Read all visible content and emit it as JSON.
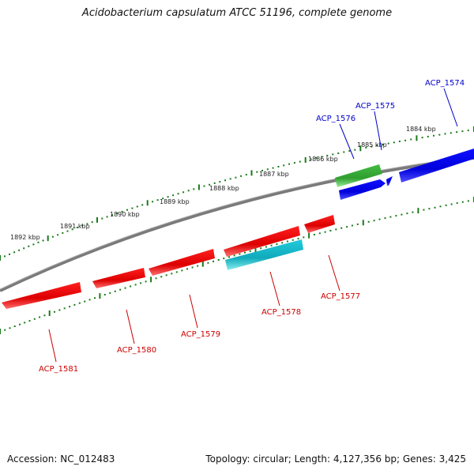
{
  "title": "Acidobacterium capsulatum ATCC 51196, complete genome",
  "accession": "Accession: NC_012483",
  "summary": "Topology: circular; Length: 4,127,356 bp; Genes: 3,425",
  "scale_labels": [
    "1884 kbp",
    "1885 kbp",
    "1886 kbp",
    "1887 kbp",
    "1888 kbp",
    "1889 kbp",
    "1890 kbp",
    "1891 kbp",
    "1892 kbp"
  ],
  "colors": {
    "forward_label": "#0000cc",
    "reverse_label": "#cc0000",
    "gene_red": "#e00000",
    "gene_blue": "#0000e0",
    "gene_green": "#33aa33",
    "gene_cyan": "#11bbcc",
    "backbone": "#808080",
    "tick": "#1a7a1a"
  },
  "genes": [
    {
      "id": "ACP_1574",
      "strand": "forward",
      "color": "blue"
    },
    {
      "id": "ACP_1575",
      "strand": "forward",
      "color": "blue"
    },
    {
      "id": "ACP_1576",
      "strand": "forward",
      "color": "green"
    },
    {
      "id": "ACP_1577",
      "strand": "reverse",
      "color": "red"
    },
    {
      "id": "ACP_1578",
      "strand": "reverse",
      "color": "cyan"
    },
    {
      "id": "ACP_1579",
      "strand": "reverse",
      "color": "red"
    },
    {
      "id": "ACP_1580",
      "strand": "reverse",
      "color": "red"
    },
    {
      "id": "ACP_1581",
      "strand": "reverse",
      "color": "red"
    }
  ]
}
